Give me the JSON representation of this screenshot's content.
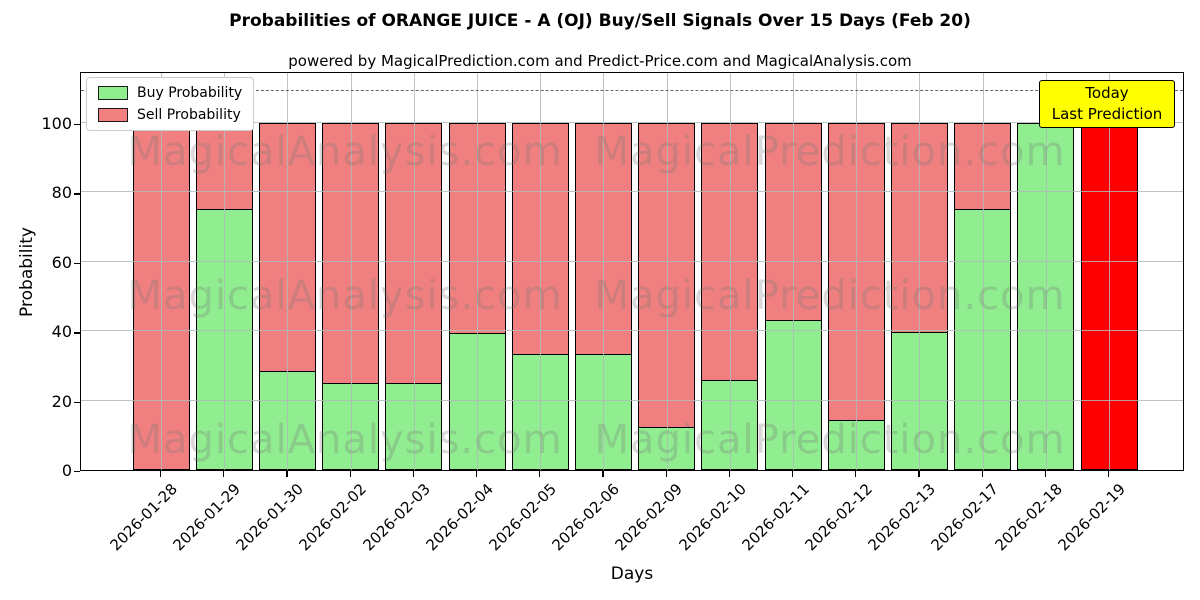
{
  "chart_data": {
    "type": "bar",
    "stacked": true,
    "title": "Probabilities of ORANGE JUICE - A (OJ) Buy/Sell Signals Over 15 Days (Feb 20)",
    "subtitle": "powered by MagicalPrediction.com and Predict-Price.com and MagicalAnalysis.com",
    "xlabel": "Days",
    "ylabel": "Probability",
    "ylim": [
      0,
      115
    ],
    "yticks": [
      0,
      20,
      40,
      60,
      80,
      100
    ],
    "grid": true,
    "dashed_guideline_y": 110,
    "legend_position": "upper-left",
    "categories": [
      "2026-01-28",
      "2026-01-29",
      "2026-01-30",
      "2026-02-02",
      "2026-02-03",
      "2026-02-04",
      "2026-02-05",
      "2026-02-06",
      "2026-02-09",
      "2026-02-10",
      "2026-02-11",
      "2026-02-12",
      "2026-02-13",
      "2026-02-17",
      "2026-02-18",
      "2026-02-19"
    ],
    "series": [
      {
        "name": "Buy Probability",
        "color": "#90EE90",
        "values": [
          0,
          75,
          28,
          24.5,
          24.5,
          39,
          33,
          33,
          12,
          25.5,
          43,
          14,
          39.5,
          75,
          100,
          0
        ]
      },
      {
        "name": "Sell Probability",
        "color": "#F08080",
        "values": [
          100,
          25,
          72,
          75.5,
          75.5,
          61,
          67,
          67,
          88,
          74.5,
          57,
          86,
          60.5,
          25,
          0,
          100
        ]
      }
    ],
    "today_bar": {
      "category": "2026-02-19",
      "color": "#FF0000",
      "value": 100
    }
  },
  "annotation": {
    "line1": "Today",
    "line2": "Last Prediction",
    "bg_color": "#FFFF00"
  },
  "watermark": {
    "left_text": "MagicalAnalysis.com",
    "right_text": "MagicalPrediction.com"
  },
  "colors": {
    "buy": "#90EE90",
    "sell": "#F08080",
    "today": "#FF0000",
    "grid": "#b0b0b0",
    "edge": "#000000"
  }
}
